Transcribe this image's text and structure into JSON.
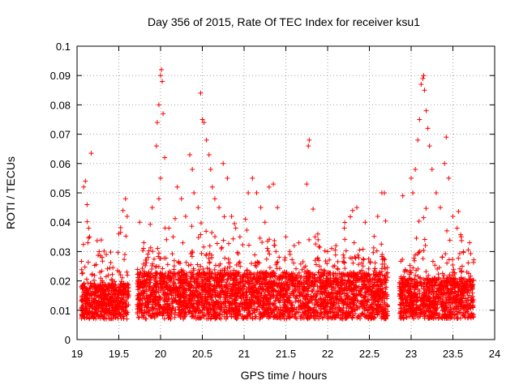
{
  "chart_data": {
    "type": "scatter",
    "title": "Day 356 of 2015, Rate Of TEC Index for receiver ksu1",
    "xlabel": "GPS time / hours",
    "ylabel": "ROTI / TECUs",
    "xlim": [
      19,
      24
    ],
    "ylim": [
      0,
      0.1
    ],
    "x_ticks": [
      19,
      19.5,
      20,
      20.5,
      21,
      21.5,
      22,
      22.5,
      23,
      23.5,
      24
    ],
    "x_tick_labels": [
      "19",
      "19.5",
      "20",
      "20.5",
      "21",
      "21.5",
      "22",
      "22.5",
      "23",
      "23.5",
      "24"
    ],
    "y_ticks": [
      0,
      0.01,
      0.02,
      0.03,
      0.04,
      0.05,
      0.06,
      0.07,
      0.08,
      0.09,
      0.1
    ],
    "y_tick_labels": [
      "0",
      "0.01",
      "0.02",
      "0.03",
      "0.04",
      "0.05",
      "0.06",
      "0.07",
      "0.08",
      "0.09",
      "0.1"
    ],
    "grid": true,
    "marker": "+",
    "color": "#ff0000",
    "segments": [
      {
        "x_start": 19.05,
        "x_end": 19.62,
        "base": 0.013,
        "spread": 0.006
      },
      {
        "x_start": 19.72,
        "x_end": 22.72,
        "base": 0.015,
        "spread": 0.008
      },
      {
        "x_start": 22.86,
        "x_end": 23.75,
        "base": 0.014,
        "spread": 0.007
      }
    ],
    "elevated_points": [
      [
        19.08,
        0.052
      ],
      [
        19.1,
        0.054
      ],
      [
        19.12,
        0.046
      ],
      [
        19.14,
        0.038
      ],
      [
        19.15,
        0.035
      ],
      [
        19.13,
        0.033
      ],
      [
        19.17,
        0.0635
      ],
      [
        19.3,
        0.028
      ],
      [
        19.35,
        0.029
      ],
      [
        19.5,
        0.036
      ],
      [
        19.55,
        0.044
      ],
      [
        19.58,
        0.048
      ],
      [
        19.6,
        0.042
      ],
      [
        19.75,
        0.04
      ],
      [
        19.8,
        0.033
      ],
      [
        19.85,
        0.028
      ],
      [
        19.9,
        0.045
      ],
      [
        19.95,
        0.066
      ],
      [
        19.96,
        0.074
      ],
      [
        19.98,
        0.08
      ],
      [
        20.0,
        0.09
      ],
      [
        20.01,
        0.092
      ],
      [
        20.02,
        0.088
      ],
      [
        20.03,
        0.077
      ],
      [
        20.05,
        0.062
      ],
      [
        20.0,
        0.055
      ],
      [
        19.98,
        0.048
      ],
      [
        20.1,
        0.038
      ],
      [
        20.15,
        0.035
      ],
      [
        20.2,
        0.052
      ],
      [
        20.25,
        0.048
      ],
      [
        20.3,
        0.042
      ],
      [
        20.35,
        0.063
      ],
      [
        20.38,
        0.058
      ],
      [
        20.4,
        0.05
      ],
      [
        20.45,
        0.045
      ],
      [
        20.48,
        0.084
      ],
      [
        20.5,
        0.075
      ],
      [
        20.52,
        0.074
      ],
      [
        20.55,
        0.068
      ],
      [
        20.58,
        0.063
      ],
      [
        20.6,
        0.058
      ],
      [
        20.62,
        0.052
      ],
      [
        20.65,
        0.048
      ],
      [
        20.7,
        0.045
      ],
      [
        20.75,
        0.06
      ],
      [
        20.8,
        0.055
      ],
      [
        20.85,
        0.042
      ],
      [
        20.9,
        0.038
      ],
      [
        20.95,
        0.035
      ],
      [
        21.05,
        0.05
      ],
      [
        21.1,
        0.055
      ],
      [
        21.15,
        0.05
      ],
      [
        21.2,
        0.045
      ],
      [
        21.25,
        0.04
      ],
      [
        21.3,
        0.052
      ],
      [
        21.35,
        0.053
      ],
      [
        21.4,
        0.045
      ],
      [
        21.5,
        0.035
      ],
      [
        21.6,
        0.032
      ],
      [
        21.75,
        0.053
      ],
      [
        21.77,
        0.066
      ],
      [
        21.78,
        0.068
      ],
      [
        21.85,
        0.035
      ],
      [
        22.0,
        0.03
      ],
      [
        22.1,
        0.032
      ],
      [
        22.2,
        0.038
      ],
      [
        22.3,
        0.044
      ],
      [
        22.35,
        0.045
      ],
      [
        22.45,
        0.04
      ],
      [
        22.6,
        0.042
      ],
      [
        22.65,
        0.05
      ],
      [
        22.68,
        0.05
      ],
      [
        22.9,
        0.049
      ],
      [
        23.0,
        0.055
      ],
      [
        23.02,
        0.05
      ],
      [
        23.05,
        0.058
      ],
      [
        23.08,
        0.068
      ],
      [
        23.1,
        0.075
      ],
      [
        23.12,
        0.087
      ],
      [
        23.14,
        0.089
      ],
      [
        23.15,
        0.09
      ],
      [
        23.16,
        0.085
      ],
      [
        23.18,
        0.078
      ],
      [
        23.2,
        0.072
      ],
      [
        23.22,
        0.066
      ],
      [
        23.25,
        0.058
      ],
      [
        23.3,
        0.05
      ],
      [
        23.35,
        0.045
      ],
      [
        23.4,
        0.06
      ],
      [
        23.42,
        0.069
      ],
      [
        23.45,
        0.055
      ],
      [
        23.5,
        0.042
      ],
      [
        23.55,
        0.038
      ],
      [
        23.6,
        0.035
      ],
      [
        23.7,
        0.033
      ]
    ]
  }
}
